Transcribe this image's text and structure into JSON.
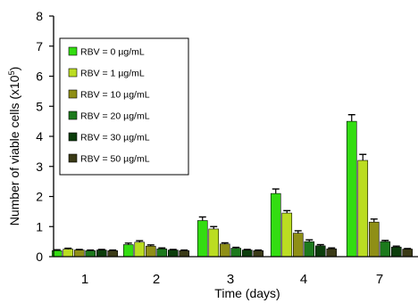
{
  "chart_data": {
    "type": "bar",
    "title": "",
    "xlabel": "Time (days)",
    "ylabel": "Number of viable cells (x10⁵)",
    "ylabel_main": "Number of viable cells  (x10",
    "ylabel_sup": "5",
    "ylabel_end": ")",
    "ylim": [
      0,
      8
    ],
    "yticks": [
      "0",
      "1",
      "2",
      "3",
      "4",
      "5",
      "6",
      "7",
      "8"
    ],
    "categories": [
      "1",
      "2",
      "3",
      "4",
      "7"
    ],
    "legend_position": "top-left",
    "grid": false,
    "error_bars": true,
    "series": [
      {
        "name": "RBV = 0 µg/mL",
        "color": "#33dd11",
        "values": [
          0.2,
          0.4,
          1.2,
          2.1,
          4.5
        ],
        "errors": [
          0.03,
          0.05,
          0.12,
          0.15,
          0.22
        ]
      },
      {
        "name": "RBV = 1 µg/mL",
        "color": "#bbdd22",
        "values": [
          0.25,
          0.48,
          0.92,
          1.45,
          3.2
        ],
        "errors": [
          0.03,
          0.05,
          0.08,
          0.08,
          0.2
        ]
      },
      {
        "name": "RBV = 10 µg/mL",
        "color": "#8f8f16",
        "values": [
          0.22,
          0.35,
          0.42,
          0.78,
          1.15
        ],
        "errors": [
          0.02,
          0.04,
          0.04,
          0.08,
          0.1
        ]
      },
      {
        "name": "RBV = 20 µg/mL",
        "color": "#1c7a1c",
        "values": [
          0.2,
          0.26,
          0.28,
          0.5,
          0.5
        ],
        "errors": [
          0.02,
          0.03,
          0.03,
          0.06,
          0.04
        ]
      },
      {
        "name": "RBV = 30 µg/mL",
        "color": "#0b3d0b",
        "values": [
          0.22,
          0.22,
          0.22,
          0.36,
          0.32
        ],
        "errors": [
          0.02,
          0.02,
          0.02,
          0.04,
          0.03
        ]
      },
      {
        "name": "RBV = 50 µg/mL",
        "color": "#3a3a16",
        "values": [
          0.2,
          0.2,
          0.2,
          0.26,
          0.25
        ],
        "errors": [
          0.02,
          0.02,
          0.02,
          0.03,
          0.02
        ]
      }
    ]
  }
}
